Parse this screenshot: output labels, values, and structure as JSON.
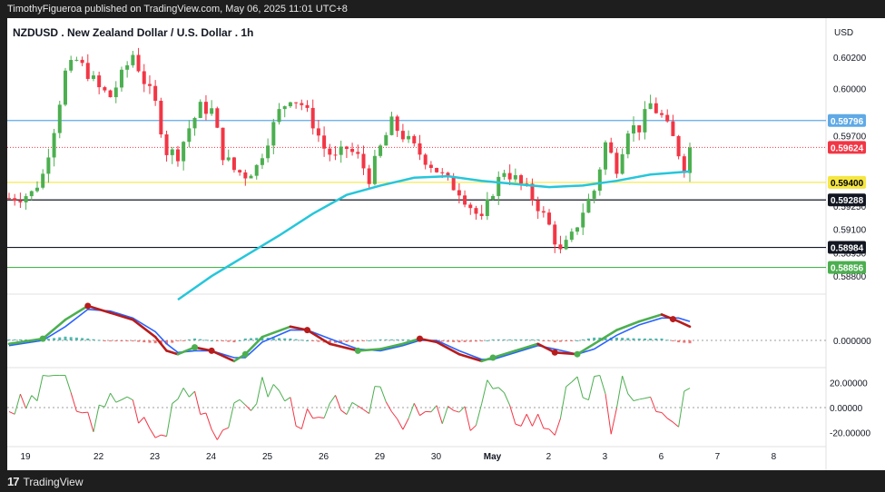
{
  "header": {
    "publisher_line": "TimothyFigueroa published on TradingView.com, May 06, 2025 11:01 UTC+8"
  },
  "chart_data": {
    "type": "candlestick",
    "title": "NZDUSD . New Zealand Dollar / U.S. Dollar . 1h",
    "currency": "USD",
    "x_tick_labels": [
      "19",
      "22",
      "23",
      "24",
      "25",
      "26",
      "29",
      "30",
      "May",
      "2",
      "3",
      "6",
      "7",
      "8"
    ],
    "price_axis": {
      "ylim": [
        0.5872,
        0.603
      ],
      "ticks": [
        "0.60200",
        "0.60000",
        "0.59700",
        "0.59400",
        "0.59250",
        "0.59100",
        "0.58950",
        "0.58800"
      ]
    },
    "price_lines": [
      {
        "value": 0.59796,
        "label": "0.59796",
        "color": "#5fa9e6",
        "style": "solid",
        "text_color": "#ffffff"
      },
      {
        "value": 0.59624,
        "label": "0.59624",
        "color": "#f23645",
        "style": "dotted",
        "text_color": "#ffffff"
      },
      {
        "value": 0.594,
        "label": "0.59400",
        "color": "#f5e642",
        "style": "solid",
        "text_color": "#000000"
      },
      {
        "value": 0.59288,
        "label": "0.59288",
        "color": "#131722",
        "style": "solid",
        "text_color": "#ffffff"
      },
      {
        "value": 0.58984,
        "label": "0.58984",
        "color": "#131722",
        "style": "solid",
        "text_color": "#ffffff"
      },
      {
        "value": 0.58856,
        "label": "0.58856",
        "color": "#4caf50",
        "style": "solid",
        "text_color": "#ffffff"
      }
    ],
    "price_path": [
      [
        0,
        0.593
      ],
      [
        2,
        0.5931
      ],
      [
        4,
        0.5933
      ],
      [
        6,
        0.5945
      ],
      [
        8,
        0.5975
      ],
      [
        10,
        0.601
      ],
      [
        12,
        0.6018
      ],
      [
        14,
        0.601
      ],
      [
        16,
        0.6
      ],
      [
        18,
        0.5995
      ],
      [
        20,
        0.6008
      ],
      [
        22,
        0.6022
      ],
      [
        24,
        0.6005
      ],
      [
        26,
        0.599
      ],
      [
        28,
        0.596
      ],
      [
        30,
        0.5958
      ],
      [
        32,
        0.5975
      ],
      [
        34,
        0.5988
      ],
      [
        36,
        0.5986
      ],
      [
        38,
        0.5958
      ],
      [
        40,
        0.5948
      ],
      [
        42,
        0.5945
      ],
      [
        44,
        0.595
      ],
      [
        46,
        0.5968
      ],
      [
        48,
        0.5985
      ],
      [
        50,
        0.5995
      ],
      [
        52,
        0.599
      ],
      [
        54,
        0.5978
      ],
      [
        56,
        0.5962
      ],
      [
        58,
        0.5955
      ],
      [
        60,
        0.5962
      ],
      [
        62,
        0.5956
      ],
      [
        64,
        0.5943
      ],
      [
        66,
        0.5962
      ],
      [
        68,
        0.5978
      ],
      [
        70,
        0.597
      ],
      [
        72,
        0.5962
      ],
      [
        74,
        0.5955
      ],
      [
        76,
        0.5948
      ],
      [
        78,
        0.594
      ],
      [
        80,
        0.5935
      ],
      [
        82,
        0.5925
      ],
      [
        84,
        0.5915
      ],
      [
        86,
        0.5935
      ],
      [
        88,
        0.5948
      ],
      [
        90,
        0.5942
      ],
      [
        92,
        0.5935
      ],
      [
        94,
        0.5925
      ],
      [
        96,
        0.5912
      ],
      [
        98,
        0.5895
      ],
      [
        100,
        0.5905
      ],
      [
        102,
        0.5922
      ],
      [
        104,
        0.5935
      ],
      [
        106,
        0.5965
      ],
      [
        108,
        0.595
      ],
      [
        110,
        0.5975
      ],
      [
        112,
        0.5975
      ],
      [
        114,
        0.599
      ],
      [
        116,
        0.5982
      ],
      [
        118,
        0.5968
      ],
      [
        120,
        0.595
      ],
      [
        121,
        0.5962
      ]
    ],
    "ma_path": [
      [
        30,
        0.5865
      ],
      [
        36,
        0.588
      ],
      [
        42,
        0.5893
      ],
      [
        48,
        0.5906
      ],
      [
        54,
        0.592
      ],
      [
        60,
        0.5932
      ],
      [
        66,
        0.5938
      ],
      [
        72,
        0.5943
      ],
      [
        78,
        0.5944
      ],
      [
        84,
        0.5941
      ],
      [
        90,
        0.5939
      ],
      [
        96,
        0.5937
      ],
      [
        102,
        0.5938
      ],
      [
        108,
        0.5941
      ],
      [
        114,
        0.5945
      ],
      [
        121,
        0.5947
      ]
    ],
    "macd_panel": {
      "ticks": [
        "0.000000"
      ],
      "fast_line": [
        [
          0,
          -0.1
        ],
        [
          6,
          0.05
        ],
        [
          10,
          0.6
        ],
        [
          14,
          1.0
        ],
        [
          18,
          0.8
        ],
        [
          22,
          0.6
        ],
        [
          26,
          0.1
        ],
        [
          28,
          -0.3
        ],
        [
          30,
          -0.4
        ],
        [
          33,
          -0.2
        ],
        [
          36,
          -0.3
        ],
        [
          40,
          -0.6
        ],
        [
          42,
          -0.4
        ],
        [
          45,
          0.1
        ],
        [
          50,
          0.4
        ],
        [
          53,
          0.3
        ],
        [
          57,
          -0.1
        ],
        [
          62,
          -0.3
        ],
        [
          66,
          -0.25
        ],
        [
          70,
          -0.1
        ],
        [
          73,
          0.05
        ],
        [
          76,
          -0.05
        ],
        [
          80,
          -0.4
        ],
        [
          84,
          -0.6
        ],
        [
          86,
          -0.5
        ],
        [
          90,
          -0.3
        ],
        [
          94,
          -0.1
        ],
        [
          97,
          -0.35
        ],
        [
          101,
          -0.4
        ],
        [
          104,
          -0.1
        ],
        [
          108,
          0.3
        ],
        [
          112,
          0.55
        ],
        [
          116,
          0.75
        ],
        [
          119,
          0.55
        ],
        [
          121,
          0.4
        ]
      ],
      "slow_line": [
        [
          0,
          -0.15
        ],
        [
          6,
          0.0
        ],
        [
          10,
          0.4
        ],
        [
          14,
          0.9
        ],
        [
          18,
          0.85
        ],
        [
          22,
          0.65
        ],
        [
          26,
          0.25
        ],
        [
          28,
          -0.1
        ],
        [
          30,
          -0.35
        ],
        [
          33,
          -0.3
        ],
        [
          36,
          -0.3
        ],
        [
          40,
          -0.5
        ],
        [
          42,
          -0.5
        ],
        [
          45,
          -0.05
        ],
        [
          50,
          0.3
        ],
        [
          53,
          0.3
        ],
        [
          57,
          0.05
        ],
        [
          62,
          -0.25
        ],
        [
          66,
          -0.3
        ],
        [
          70,
          -0.15
        ],
        [
          73,
          0.0
        ],
        [
          76,
          0.0
        ],
        [
          80,
          -0.3
        ],
        [
          84,
          -0.55
        ],
        [
          86,
          -0.55
        ],
        [
          90,
          -0.35
        ],
        [
          94,
          -0.15
        ],
        [
          97,
          -0.25
        ],
        [
          101,
          -0.4
        ],
        [
          104,
          -0.25
        ],
        [
          108,
          0.15
        ],
        [
          112,
          0.45
        ],
        [
          116,
          0.65
        ],
        [
          119,
          0.65
        ],
        [
          121,
          0.55
        ]
      ],
      "cross_points_up": [
        6,
        33,
        42,
        62,
        86,
        101
      ],
      "cross_points_down": [
        14,
        36,
        53,
        73,
        97,
        118
      ]
    },
    "oscillator_panel": {
      "ticks": [
        "20.00000",
        "0.00000",
        "-20.00000"
      ],
      "ylim": [
        -30,
        30
      ],
      "baseline": 0
    },
    "colors": {
      "background": "#ffffff",
      "up_candle": "#4caf50",
      "down_candle": "#f23645",
      "ma_line": "#26c6da",
      "macd_rising": "#4caf50",
      "macd_falling": "#b71c1c",
      "macd_signal": "#2962ff",
      "hist_up": "#26a69a",
      "hist_down": "#ef5350"
    }
  },
  "footer": {
    "brand": "TradingView",
    "logo_icon": "tradingview-logo-icon"
  }
}
